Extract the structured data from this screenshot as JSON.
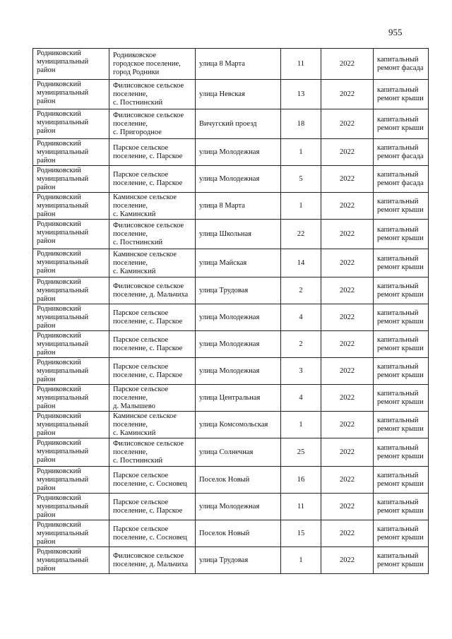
{
  "page_number": "955",
  "rows": [
    {
      "district": [
        "Родниковский",
        "муниципальный",
        "район"
      ],
      "settlement": [
        "Родниковское",
        "городское поселение,",
        "город Родники"
      ],
      "street": "улица 8 Марта",
      "house": "11",
      "year": "2022",
      "work": [
        "капитальный",
        "ремонт фасада"
      ]
    },
    {
      "district": [
        "Родниковский",
        "муниципальный",
        "район"
      ],
      "settlement": [
        "Филисовское сельское",
        "поселение,",
        "с. Постнинский"
      ],
      "street": "улица Невская",
      "house": "13",
      "year": "2022",
      "work": [
        "капитальный",
        "ремонт крыши"
      ]
    },
    {
      "district": [
        "Родниковский",
        "муниципальный",
        "район"
      ],
      "settlement": [
        "Филисовское сельское",
        "поселение,",
        "с. Пригородное"
      ],
      "street": "Вичугский проезд",
      "house": "18",
      "year": "2022",
      "work": [
        "капитальный",
        "ремонт крыши"
      ]
    },
    {
      "district": [
        "Родниковский",
        "муниципальный",
        "район"
      ],
      "settlement": [
        "Парское сельское",
        "поселение, с. Парское"
      ],
      "street": "улица Молодежная",
      "house": "1",
      "year": "2022",
      "work": [
        "капитальный",
        "ремонт фасада"
      ]
    },
    {
      "district": [
        "Родниковский",
        "муниципальный",
        "район"
      ],
      "settlement": [
        "Парское сельское",
        "поселение, с. Парское"
      ],
      "street": "улица Молодежная",
      "house": "5",
      "year": "2022",
      "work": [
        "капитальный",
        "ремонт фасада"
      ]
    },
    {
      "district": [
        "Родниковский",
        "муниципальный",
        "район"
      ],
      "settlement": [
        "Каминское сельское",
        "поселение,",
        "с. Каминский"
      ],
      "street": "улица 8 Марта",
      "house": "1",
      "year": "2022",
      "work": [
        "капитальный",
        "ремонт крыши"
      ]
    },
    {
      "district": [
        "Родниковский",
        "муниципальный",
        "район"
      ],
      "settlement": [
        "Филисовское сельское",
        "поселение,",
        "с. Постнинский"
      ],
      "street": "улица Школьная",
      "house": "22",
      "year": "2022",
      "work": [
        "капитальный",
        "ремонт крыши"
      ]
    },
    {
      "district": [
        "Родниковский",
        "муниципальный",
        "район"
      ],
      "settlement": [
        "Каминское сельское",
        "поселение,",
        "с. Каминский"
      ],
      "street": "улица Майская",
      "house": "14",
      "year": "2022",
      "work": [
        "капитальный",
        "ремонт крыши"
      ]
    },
    {
      "district": [
        "Родниковский",
        "муниципальный",
        "район"
      ],
      "settlement": [
        "Филисовское сельское",
        "поселение, д. Мальчиха"
      ],
      "street": "улица Трудовая",
      "house": "2",
      "year": "2022",
      "work": [
        "капитальный",
        "ремонт крыши"
      ]
    },
    {
      "district": [
        "Родниковский",
        "муниципальный",
        "район"
      ],
      "settlement": [
        "Парское сельское",
        "поселение, с. Парское"
      ],
      "street": "улица Молодежная",
      "house": "4",
      "year": "2022",
      "work": [
        "капитальный",
        "ремонт крыши"
      ]
    },
    {
      "district": [
        "Родниковский",
        "муниципальный",
        "район"
      ],
      "settlement": [
        "Парское сельское",
        "поселение, с. Парское"
      ],
      "street": "улица Молодежная",
      "house": "2",
      "year": "2022",
      "work": [
        "капитальный",
        "ремонт крыши"
      ]
    },
    {
      "district": [
        "Родниковский",
        "муниципальный",
        "район"
      ],
      "settlement": [
        "Парское сельское",
        "поселение, с. Парское"
      ],
      "street": "улица Молодежная",
      "house": "3",
      "year": "2022",
      "work": [
        "капитальный",
        "ремонт крыши"
      ]
    },
    {
      "district": [
        "Родниковский",
        "муниципальный",
        "район"
      ],
      "settlement": [
        "Парское сельское",
        "поселение,",
        "д. Малышево"
      ],
      "street": "улица Центральная",
      "house": "4",
      "year": "2022",
      "work": [
        "капитальный",
        "ремонт крыши"
      ]
    },
    {
      "district": [
        "Родниковский",
        "муниципальный",
        "район"
      ],
      "settlement": [
        "Каминское сельское",
        "поселение,",
        "с. Каминский"
      ],
      "street": "улица  Комсомольская",
      "house": "1",
      "year": "2022",
      "work": [
        "капитальный",
        "ремонт крыши"
      ]
    },
    {
      "district": [
        "Родниковский",
        "муниципальный",
        "район"
      ],
      "settlement": [
        "Филисовское сельское",
        "поселение,",
        "с. Постнинский"
      ],
      "street": "улица Солнечная",
      "house": "25",
      "year": "2022",
      "work": [
        "капитальный",
        "ремонт крыши"
      ]
    },
    {
      "district": [
        "Родниковский",
        "муниципальный",
        "район"
      ],
      "settlement": [
        "Парское сельское",
        "поселение, с. Сосновец"
      ],
      "street": "Поселок Новый",
      "house": "16",
      "year": "2022",
      "work": [
        "капитальный",
        "ремонт крыши"
      ]
    },
    {
      "district": [
        "Родниковский",
        "муниципальный",
        "район"
      ],
      "settlement": [
        "Парское сельское",
        "поселение, с. Парское"
      ],
      "street": "улица Молодежная",
      "house": "11",
      "year": "2022",
      "work": [
        "капитальный",
        "ремонт крыши"
      ]
    },
    {
      "district": [
        "Родниковский",
        "муниципальный",
        "район"
      ],
      "settlement": [
        "Парское сельское",
        "поселение, с. Сосновец"
      ],
      "street": "Поселок Новый",
      "house": "15",
      "year": "2022",
      "work": [
        "капитальный",
        "ремонт крыши"
      ]
    },
    {
      "district": [
        "Родниковский",
        "муниципальный",
        "район"
      ],
      "settlement": [
        "Филисовское сельское",
        "поселение, д. Мальчиха"
      ],
      "street": "улица Трудовая",
      "house": "1",
      "year": "2022",
      "work": [
        "капитальный",
        "ремонт крыши"
      ]
    }
  ]
}
